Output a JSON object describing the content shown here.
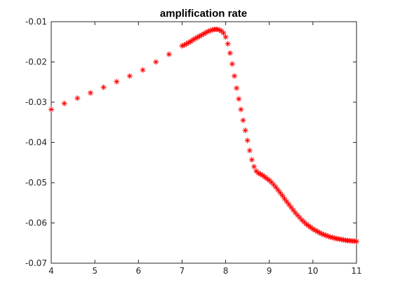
{
  "chart_data": {
    "type": "scatter",
    "title": "amplification rate",
    "xlabel": "",
    "ylabel": "",
    "xlim": [
      4,
      11
    ],
    "ylim": [
      -0.07,
      -0.01
    ],
    "grid": false,
    "marker": "asterisk",
    "marker_color": "#ff0000",
    "x_ticks": [
      "4",
      "5",
      "6",
      "7",
      "8",
      "9",
      "10",
      "11"
    ],
    "y_ticks": [
      "-0.01",
      "-0.02",
      "-0.03",
      "-0.04",
      "-0.05",
      "-0.06",
      "-0.07"
    ],
    "x_tick_values": [
      4,
      5,
      6,
      7,
      8,
      9,
      10,
      11
    ],
    "y_tick_values": [
      -0.01,
      -0.02,
      -0.03,
      -0.04,
      -0.05,
      -0.06,
      -0.07
    ],
    "points": [
      [
        4.0,
        -0.0318
      ],
      [
        4.3,
        -0.0303
      ],
      [
        4.6,
        -0.029
      ],
      [
        4.9,
        -0.0277
      ],
      [
        5.2,
        -0.0263
      ],
      [
        5.5,
        -0.0249
      ],
      [
        5.8,
        -0.0235
      ],
      [
        6.1,
        -0.022
      ],
      [
        6.4,
        -0.02
      ],
      [
        6.7,
        -0.0181
      ],
      [
        7.0,
        -0.016
      ],
      [
        7.05,
        -0.0158
      ],
      [
        7.1,
        -0.0155
      ],
      [
        7.15,
        -0.0152
      ],
      [
        7.2,
        -0.0149
      ],
      [
        7.25,
        -0.0145
      ],
      [
        7.3,
        -0.0142
      ],
      [
        7.35,
        -0.0139
      ],
      [
        7.4,
        -0.0136
      ],
      [
        7.45,
        -0.0133
      ],
      [
        7.5,
        -0.013
      ],
      [
        7.55,
        -0.0127
      ],
      [
        7.6,
        -0.0124
      ],
      [
        7.65,
        -0.0122
      ],
      [
        7.7,
        -0.012
      ],
      [
        7.75,
        -0.0119
      ],
      [
        7.8,
        -0.0119
      ],
      [
        7.85,
        -0.012
      ],
      [
        7.9,
        -0.0123
      ],
      [
        7.95,
        -0.0128
      ],
      [
        8.0,
        -0.0138
      ],
      [
        8.05,
        -0.0155
      ],
      [
        8.1,
        -0.0178
      ],
      [
        8.15,
        -0.0205
      ],
      [
        8.2,
        -0.0235
      ],
      [
        8.25,
        -0.0265
      ],
      [
        8.3,
        -0.0292
      ],
      [
        8.35,
        -0.0318
      ],
      [
        8.4,
        -0.0345
      ],
      [
        8.45,
        -0.037
      ],
      [
        8.5,
        -0.0395
      ],
      [
        8.55,
        -0.042
      ],
      [
        8.6,
        -0.0443
      ],
      [
        8.65,
        -0.046
      ],
      [
        8.7,
        -0.0471
      ],
      [
        8.75,
        -0.0476
      ],
      [
        8.8,
        -0.0479
      ],
      [
        8.85,
        -0.0482
      ],
      [
        8.9,
        -0.0486
      ],
      [
        8.95,
        -0.049
      ],
      [
        9.0,
        -0.0494
      ],
      [
        9.05,
        -0.0499
      ],
      [
        9.1,
        -0.0505
      ],
      [
        9.15,
        -0.0511
      ],
      [
        9.2,
        -0.0518
      ],
      [
        9.25,
        -0.0525
      ],
      [
        9.3,
        -0.0532
      ],
      [
        9.35,
        -0.054
      ],
      [
        9.4,
        -0.0547
      ],
      [
        9.45,
        -0.0554
      ],
      [
        9.5,
        -0.0561
      ],
      [
        9.55,
        -0.0568
      ],
      [
        9.6,
        -0.0575
      ],
      [
        9.65,
        -0.0581
      ],
      [
        9.7,
        -0.0587
      ],
      [
        9.75,
        -0.0593
      ],
      [
        9.8,
        -0.0598
      ],
      [
        9.85,
        -0.0603
      ],
      [
        9.9,
        -0.0607
      ],
      [
        9.95,
        -0.0611
      ],
      [
        10.0,
        -0.0615
      ],
      [
        10.05,
        -0.0618
      ],
      [
        10.1,
        -0.0621
      ],
      [
        10.15,
        -0.0624
      ],
      [
        10.2,
        -0.0627
      ],
      [
        10.25,
        -0.0629
      ],
      [
        10.3,
        -0.0631
      ],
      [
        10.35,
        -0.0633
      ],
      [
        10.4,
        -0.0635
      ],
      [
        10.45,
        -0.0636
      ],
      [
        10.5,
        -0.0638
      ],
      [
        10.55,
        -0.0639
      ],
      [
        10.6,
        -0.064
      ],
      [
        10.65,
        -0.0641
      ],
      [
        10.7,
        -0.0642
      ],
      [
        10.75,
        -0.0643
      ],
      [
        10.8,
        -0.0644
      ],
      [
        10.85,
        -0.0644
      ],
      [
        10.9,
        -0.0645
      ],
      [
        10.95,
        -0.0645
      ],
      [
        11.0,
        -0.0646
      ]
    ]
  }
}
